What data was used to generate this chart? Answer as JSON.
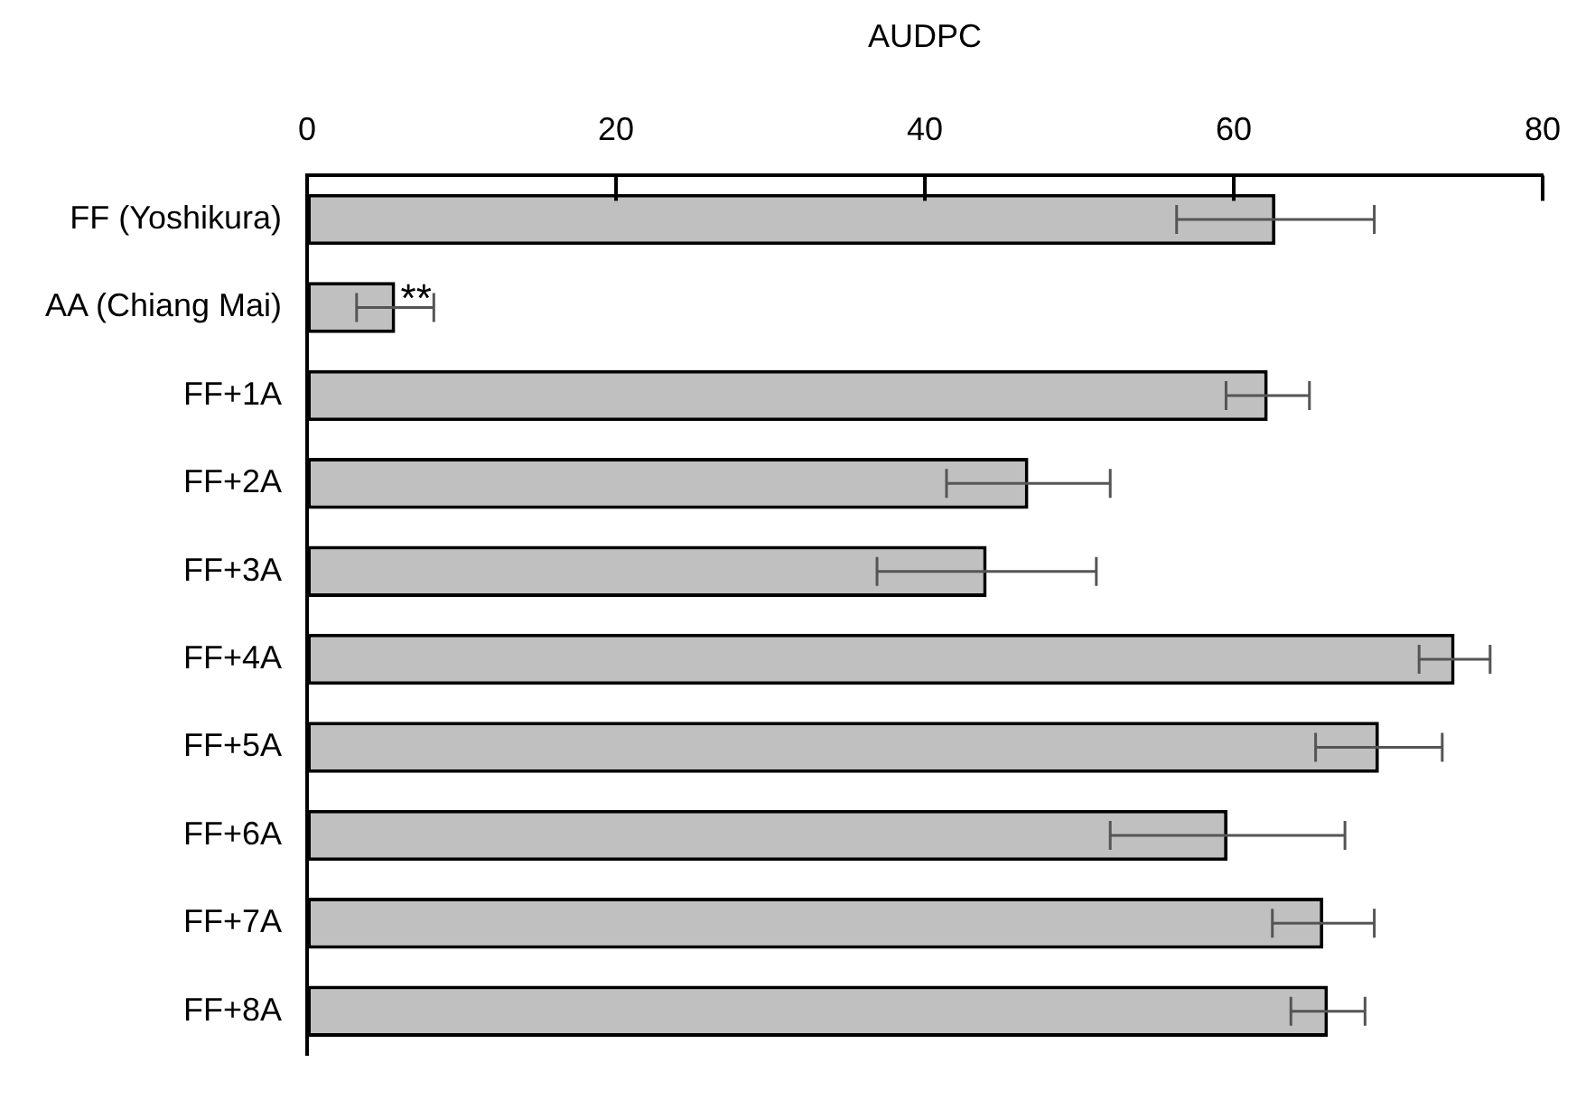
{
  "chart_data": {
    "type": "bar",
    "orientation": "horizontal",
    "xlabel": "AUDPC",
    "categories": [
      "FF (Yoshikura)",
      "AA (Chiang Mai)",
      "FF+1A",
      "FF+2A",
      "FF+3A",
      "FF+4A",
      "FF+5A",
      "FF+6A",
      "FF+7A",
      "FF+8A"
    ],
    "values": [
      62.7,
      5.7,
      62.2,
      46.7,
      44.0,
      74.3,
      69.4,
      59.6,
      65.8,
      66.1
    ],
    "errors": [
      6.4,
      2.5,
      2.7,
      5.3,
      7.1,
      2.3,
      4.1,
      7.6,
      3.3,
      2.4
    ],
    "color": "#c0c0c0",
    "xlim": [
      0,
      80
    ],
    "xticks": [
      0,
      20,
      40,
      60,
      80
    ],
    "annotations": [
      {
        "text": "**",
        "x": 5.7,
        "y": "AA (Chiang Mai)"
      }
    ],
    "grid": false,
    "legend": false
  }
}
